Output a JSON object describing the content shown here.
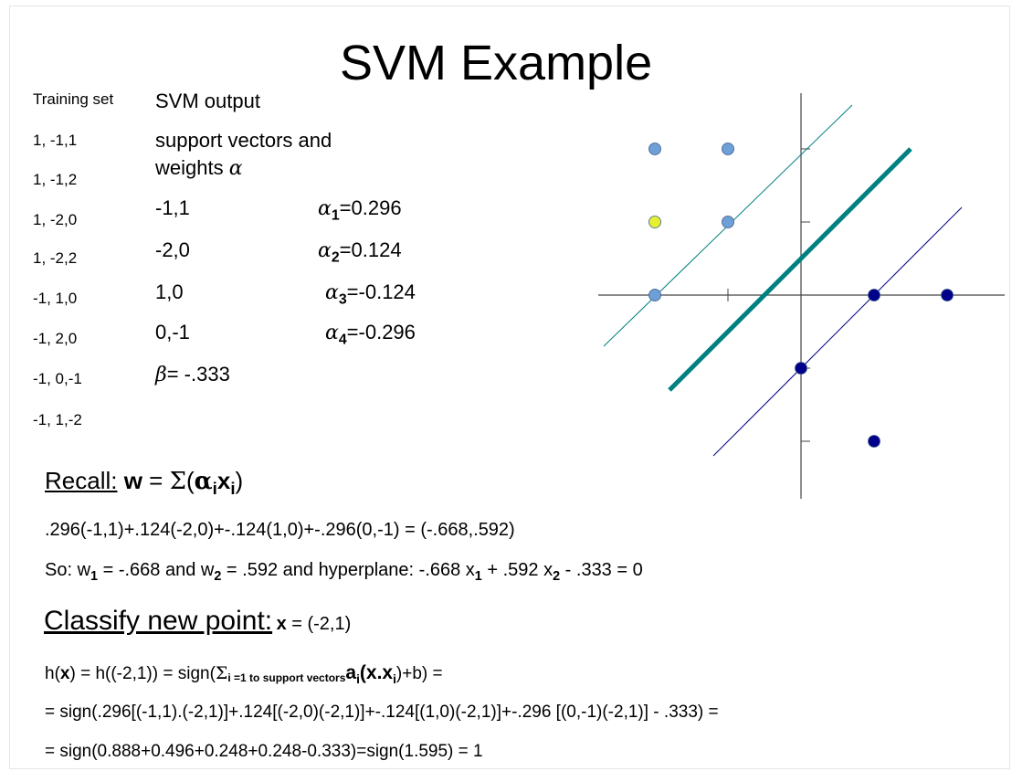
{
  "title": "SVM Example",
  "training_set": {
    "header": "Training set",
    "rows": [
      "1, -1,1",
      "1, -1,2",
      "1, -2,0",
      "1, -2,2",
      "-1, 1,0",
      "-1, 2,0",
      "-1, 0,-1",
      "-1, 1,-2"
    ]
  },
  "svm_output": {
    "header": "SVM output",
    "support_text": "support vectors    and",
    "weights_text": "weights",
    "alpha_symbol": "α",
    "beta_symbol": "β",
    "vectors": [
      {
        "vec": "-1,1",
        "idx": "1",
        "val": "=0.296"
      },
      {
        "vec": "-2,0",
        "idx": "2",
        "val": "=0.124"
      },
      {
        "vec": "1,0",
        "idx": "3",
        "val": "=-0.124"
      },
      {
        "vec": "0,-1",
        "idx": "4",
        "val": "=-0.296"
      }
    ],
    "beta": "= -.333"
  },
  "recall": {
    "label": "Recall:",
    "w": "w",
    "eq": " = ",
    "sigma": "Σ",
    "open": "(",
    "alpha": "α",
    "i": "i",
    "x": "x",
    "close": ")"
  },
  "lines": {
    "calc": ".296(-1,1)+.124(-2,0)+-.124(1,0)+-.296(0,-1) = (-.668,.592)",
    "so_a": "So: w",
    "so_sub1": "1",
    "so_b": " = -.668 and w",
    "so_sub2": "2",
    "so_c": " = .592  and hyperplane: -.668 x",
    "so_sub3": "1",
    "so_d": " + .592 x",
    "so_sub4": "2",
    "so_e": " - .333 = 0"
  },
  "classify": {
    "label": "Classify new point:",
    "x": "x",
    "rest": " = (-2,1)"
  },
  "h_line": {
    "a": "h(",
    "x1": "x",
    "b": ") = h((-2,1)) = sign(",
    "sigma": "Σ",
    "sub": "i =1 to support vectors",
    "a_i": "a",
    "i": "i",
    "xx": "(x.x",
    "i2": "i",
    "c": ")+b)  ="
  },
  "eq2": "= sign(.296[(-1,1).(-2,1)]+.124[(-2,0)(-2,1)]+-.124[(1,0)(-2,1)]+-.296 [(0,-1)(-2,1)] - .333) =",
  "eq3": "= sign(0.888+0.496+0.248+0.248-0.333)=sign(1.595) = 1",
  "chart_data": {
    "type": "scatter",
    "title": "",
    "xlim": [
      -2,
      2
    ],
    "ylim": [
      -2,
      2
    ],
    "grid": false,
    "series": [
      {
        "color": "#6e9fd6",
        "points": [
          [
            -2,
            2
          ],
          [
            -1,
            2
          ],
          [
            -1,
            1
          ],
          [
            -2,
            0
          ]
        ]
      },
      {
        "color": "#e6f032",
        "points": [
          [
            -2,
            1
          ]
        ]
      },
      {
        "color": "#00008a",
        "points": [
          [
            1,
            0
          ],
          [
            2,
            0
          ],
          [
            0,
            -1
          ],
          [
            1,
            -2
          ]
        ]
      }
    ],
    "lines": [
      {
        "color": "#008080",
        "from": [
          -2.7,
          -0.7
        ],
        "to": [
          0.7,
          2.6
        ],
        "width": 1
      },
      {
        "color": "#008080",
        "from": [
          -1.8,
          -1.3
        ],
        "to": [
          1.5,
          2.0
        ],
        "width": 5
      },
      {
        "color": "#00008a",
        "from": [
          -1.2,
          -2.2
        ],
        "to": [
          2.2,
          1.2
        ],
        "width": 1
      }
    ]
  }
}
